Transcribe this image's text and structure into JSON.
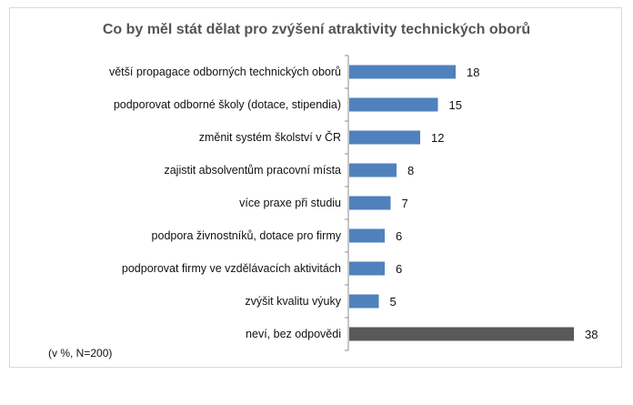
{
  "chart_data": {
    "type": "bar",
    "orientation": "horizontal",
    "title": "Co by měl stát dělat pro zvýšení atraktivity technických oborů",
    "note": "(v %, N=200)",
    "categories": [
      "větší propagace odborných technických oborů",
      "podporovat odborné školy (dotace, stipendia)",
      "změnit systém školství v ČR",
      "zajistit absolventům pracovní místa",
      "více praxe při studiu",
      "podpora živnostníků, dotace pro firmy",
      "podporovat firmy ve vzdělávacích aktivitách",
      "zvýšit kvalitu výuky",
      "neví, bez odpovědi"
    ],
    "values": [
      18,
      15,
      12,
      8,
      7,
      6,
      6,
      5,
      38
    ],
    "data_labels": [
      "18",
      "15",
      "12",
      "8",
      "7",
      "6",
      "6",
      "5",
      "38"
    ],
    "xlim": [
      0,
      40
    ],
    "grid": false,
    "legend": "none",
    "colors": {
      "default_bar": "#4f81bd",
      "highlight_bar": "#595959",
      "title": "#555555",
      "axis": "#8c8c8c",
      "text": "#111111"
    },
    "highlight_index": 8
  }
}
